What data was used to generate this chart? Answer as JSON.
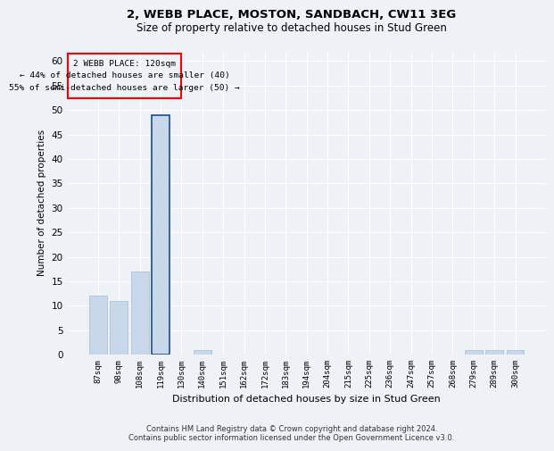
{
  "title1": "2, WEBB PLACE, MOSTON, SANDBACH, CW11 3EG",
  "title2": "Size of property relative to detached houses in Stud Green",
  "xlabel": "Distribution of detached houses by size in Stud Green",
  "ylabel": "Number of detached properties",
  "categories": [
    "87sqm",
    "98sqm",
    "108sqm",
    "119sqm",
    "130sqm",
    "140sqm",
    "151sqm",
    "162sqm",
    "172sqm",
    "183sqm",
    "194sqm",
    "204sqm",
    "215sqm",
    "225sqm",
    "236sqm",
    "247sqm",
    "257sqm",
    "268sqm",
    "279sqm",
    "289sqm",
    "300sqm"
  ],
  "values": [
    12,
    11,
    17,
    49,
    0,
    1,
    0,
    0,
    0,
    0,
    0,
    0,
    0,
    0,
    0,
    0,
    0,
    0,
    1,
    1,
    1
  ],
  "bar_color": "#c8d8ea",
  "bar_edge_color": "#a0bcd4",
  "highlight_bar_index": 3,
  "highlight_bar_color": "#c8d8ea",
  "highlight_bar_edge_color": "#1a4a8a",
  "annotation_line1": "2 WEBB PLACE: 120sqm",
  "annotation_line2": "← 44% of detached houses are smaller (40)",
  "annotation_line3": "55% of semi-detached houses are larger (50) →",
  "ylim": [
    0,
    62
  ],
  "yticks": [
    0,
    5,
    10,
    15,
    20,
    25,
    30,
    35,
    40,
    45,
    50,
    55,
    60
  ],
  "background_color": "#eef2f7",
  "grid_color": "#ffffff",
  "footer_line1": "Contains HM Land Registry data © Crown copyright and database right 2024.",
  "footer_line2": "Contains public sector information licensed under the Open Government Licence v3.0."
}
